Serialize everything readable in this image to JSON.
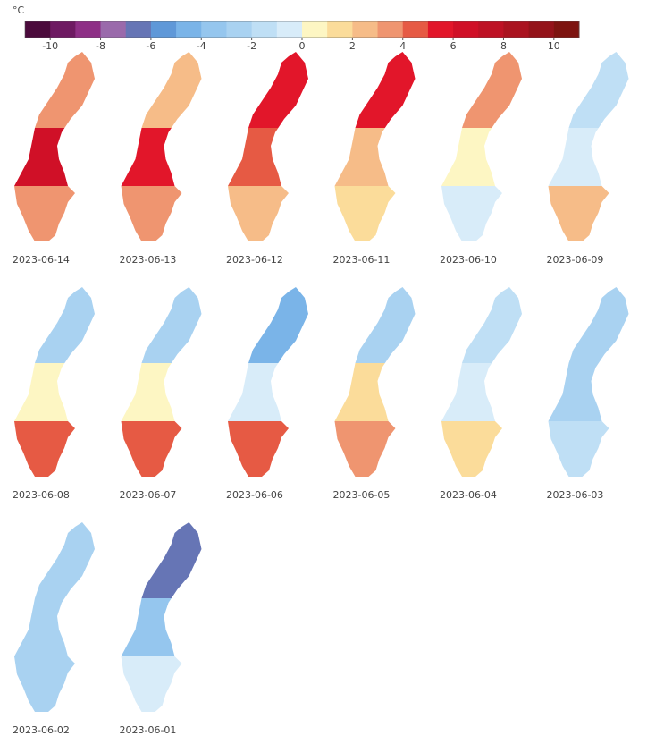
{
  "legend": {
    "unit": "°C",
    "range": [
      -11,
      11
    ],
    "colors": [
      "#4b0b3c",
      "#6e1a62",
      "#8e2f86",
      "#9a6aab",
      "#6675b5",
      "#5f98d8",
      "#7ab4e8",
      "#95c6ee",
      "#a9d2f1",
      "#bfdff5",
      "#d8ecf9",
      "#fdf6c3",
      "#fbdc9a",
      "#f6bc88",
      "#ef9570",
      "#e65a44",
      "#e2162a",
      "#d01027",
      "#be1225",
      "#aa1320",
      "#94131a",
      "#7d1410"
    ],
    "ticks": [
      -10,
      -8,
      -6,
      -4,
      -2,
      0,
      2,
      4,
      6,
      8,
      10
    ]
  },
  "maps": [
    {
      "date": "2023-06-14",
      "north": 3,
      "central": 6,
      "south": 3
    },
    {
      "date": "2023-06-13",
      "north": 2,
      "central": 5,
      "south": 3
    },
    {
      "date": "2023-06-12",
      "north": 5,
      "central": 4,
      "south": 2
    },
    {
      "date": "2023-06-11",
      "north": 5,
      "central": 2,
      "south": 1
    },
    {
      "date": "2023-06-10",
      "north": 3,
      "central": 0,
      "south": -1
    },
    {
      "date": "2023-06-09",
      "north": -2,
      "central": -1,
      "south": 2
    },
    {
      "date": "2023-06-08",
      "north": -3,
      "central": 0,
      "south": 4
    },
    {
      "date": "2023-06-07",
      "north": -3,
      "central": 0,
      "south": 4
    },
    {
      "date": "2023-06-06",
      "north": -5,
      "central": -1,
      "south": 4
    },
    {
      "date": "2023-06-05",
      "north": -3,
      "central": 1,
      "south": 3
    },
    {
      "date": "2023-06-04",
      "north": -2,
      "central": -1,
      "south": 1
    },
    {
      "date": "2023-06-03",
      "north": -3,
      "central": -3,
      "south": -2
    },
    {
      "date": "2023-06-02",
      "north": -3,
      "central": -3,
      "south": -3
    },
    {
      "date": "2023-06-01",
      "north": -7,
      "central": -4,
      "south": -1
    }
  ]
}
